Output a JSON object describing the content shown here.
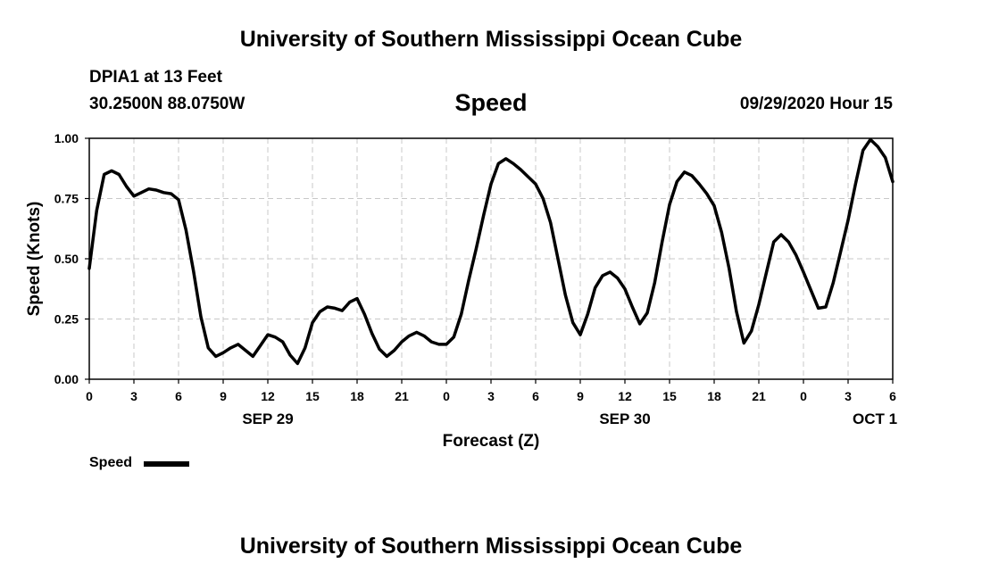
{
  "header": {
    "title": "University of Southern Mississippi Ocean Cube",
    "station": "DPIA1 at 13 Feet",
    "coords": "30.2500N 88.0750W",
    "variable": "Speed",
    "datetime": "09/29/2020 Hour 15"
  },
  "footer": {
    "title": "University of Southern Mississippi Ocean Cube"
  },
  "legend": {
    "label": "Speed"
  },
  "chart_data": {
    "type": "line",
    "title": "Speed",
    "xlabel": "Forecast (Z)",
    "ylabel": "Speed (Knots)",
    "xlim": [
      0,
      54
    ],
    "ylim": [
      0,
      1.0
    ],
    "grid": true,
    "legend": "bottom-left",
    "line_color": "#000000",
    "x_ticks": [
      {
        "x": 0,
        "label": "0"
      },
      {
        "x": 3,
        "label": "3"
      },
      {
        "x": 6,
        "label": "6"
      },
      {
        "x": 9,
        "label": "9"
      },
      {
        "x": 12,
        "label": "12"
      },
      {
        "x": 15,
        "label": "15"
      },
      {
        "x": 18,
        "label": "18"
      },
      {
        "x": 21,
        "label": "21"
      },
      {
        "x": 24,
        "label": "0"
      },
      {
        "x": 27,
        "label": "3"
      },
      {
        "x": 30,
        "label": "6"
      },
      {
        "x": 33,
        "label": "9"
      },
      {
        "x": 36,
        "label": "12"
      },
      {
        "x": 39,
        "label": "15"
      },
      {
        "x": 42,
        "label": "18"
      },
      {
        "x": 45,
        "label": "21"
      },
      {
        "x": 48,
        "label": "0"
      },
      {
        "x": 51,
        "label": "3"
      },
      {
        "x": 54,
        "label": "6"
      }
    ],
    "y_ticks": [
      {
        "y": 0.0,
        "label": "0.00"
      },
      {
        "y": 0.25,
        "label": "0.25"
      },
      {
        "y": 0.5,
        "label": "0.50"
      },
      {
        "y": 0.75,
        "label": "0.75"
      },
      {
        "y": 1.0,
        "label": "1.00"
      }
    ],
    "date_labels": [
      {
        "x": 12,
        "label": "SEP 29"
      },
      {
        "x": 36,
        "label": "SEP 30"
      },
      {
        "x": 52.8,
        "label": "OCT 1"
      }
    ],
    "series": [
      {
        "name": "Speed",
        "x": [
          0,
          0.5,
          1,
          1.5,
          2,
          2.5,
          3,
          3.5,
          4,
          4.5,
          5,
          5.5,
          6,
          6.5,
          7,
          7.5,
          8,
          8.5,
          9,
          9.5,
          10,
          10.5,
          11,
          11.5,
          12,
          12.5,
          13,
          13.5,
          14,
          14.5,
          15,
          15.5,
          16,
          16.5,
          17,
          17.5,
          18,
          18.5,
          19,
          19.5,
          20,
          20.5,
          21,
          21.5,
          22,
          22.5,
          23,
          23.5,
          24,
          24.5,
          25,
          25.5,
          26,
          26.5,
          27,
          27.5,
          28,
          28.5,
          29,
          29.5,
          30,
          30.5,
          31,
          31.5,
          32,
          32.5,
          33,
          33.5,
          34,
          34.5,
          35,
          35.5,
          36,
          36.5,
          37,
          37.5,
          38,
          38.5,
          39,
          39.5,
          40,
          40.5,
          41,
          41.5,
          42,
          42.5,
          43,
          43.5,
          44,
          44.5,
          45,
          45.5,
          46,
          46.5,
          47,
          47.5,
          48,
          48.5,
          49,
          49.5,
          50,
          50.5,
          51,
          51.5,
          52,
          52.5,
          53,
          53.5,
          54
        ],
        "values": [
          0.46,
          0.7,
          0.85,
          0.865,
          0.85,
          0.8,
          0.76,
          0.775,
          0.79,
          0.785,
          0.775,
          0.77,
          0.745,
          0.62,
          0.45,
          0.26,
          0.13,
          0.095,
          0.11,
          0.13,
          0.145,
          0.12,
          0.095,
          0.14,
          0.185,
          0.175,
          0.155,
          0.1,
          0.065,
          0.13,
          0.235,
          0.28,
          0.3,
          0.295,
          0.285,
          0.32,
          0.335,
          0.27,
          0.19,
          0.125,
          0.095,
          0.12,
          0.155,
          0.18,
          0.195,
          0.18,
          0.155,
          0.145,
          0.145,
          0.175,
          0.27,
          0.41,
          0.54,
          0.68,
          0.81,
          0.895,
          0.915,
          0.895,
          0.87,
          0.84,
          0.81,
          0.75,
          0.65,
          0.5,
          0.35,
          0.235,
          0.185,
          0.27,
          0.38,
          0.43,
          0.445,
          0.42,
          0.375,
          0.3,
          0.23,
          0.275,
          0.4,
          0.57,
          0.725,
          0.82,
          0.86,
          0.845,
          0.81,
          0.77,
          0.72,
          0.61,
          0.46,
          0.28,
          0.15,
          0.2,
          0.31,
          0.44,
          0.57,
          0.6,
          0.57,
          0.515,
          0.445,
          0.37,
          0.295,
          0.3,
          0.4,
          0.53,
          0.66,
          0.81,
          0.95,
          0.995,
          0.965,
          0.92,
          0.82
        ]
      }
    ]
  }
}
